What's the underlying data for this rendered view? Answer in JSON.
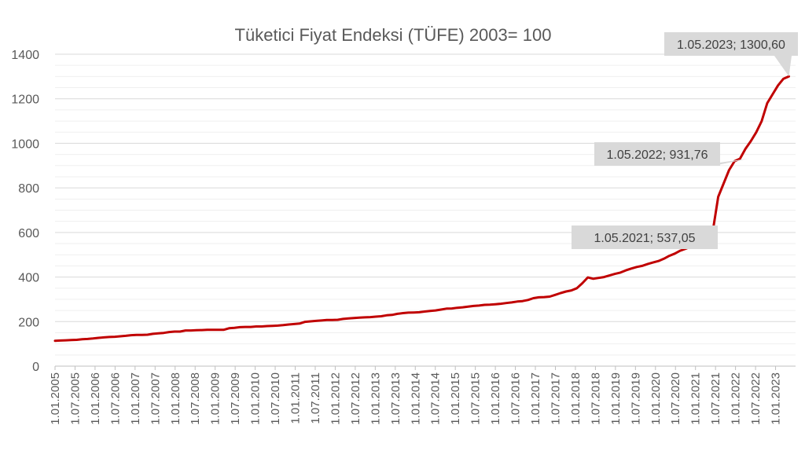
{
  "chart_data": {
    "type": "line",
    "title": "Tüketici Fiyat Endeksi (TÜFE) 2003= 100",
    "xlabel": "",
    "ylabel": "",
    "ylim": [
      0,
      1400
    ],
    "yticks": [
      "0",
      "200",
      "400",
      "600",
      "800",
      "1000",
      "1200",
      "1400"
    ],
    "xticks": [
      "1.01.2005",
      "1.07.2005",
      "1.01.2006",
      "1.07.2006",
      "1.01.2007",
      "1.07.2007",
      "1.01.2008",
      "1.07.2008",
      "1.01.2009",
      "1.07.2009",
      "1.01.2010",
      "1.07.2010",
      "1.01.2011",
      "1.07.2011",
      "1.01.2012",
      "1.07.2012",
      "1.01.2013",
      "1.07.2013",
      "1.01.2014",
      "1.07.2014",
      "1.01.2015",
      "1.07.2015",
      "1.01.2016",
      "1.07.2016",
      "1.01.2017",
      "1.07.2017",
      "1.01.2018",
      "1.07.2018",
      "1.01.2019",
      "1.07.2019",
      "1.01.2020",
      "1.07.2020",
      "1.01.2021",
      "1.07.2021",
      "1.01.2022",
      "1.07.2022",
      "1.01.2023"
    ],
    "grid": true,
    "line_color": "#C00000",
    "series": [
      {
        "values": [
          114,
          115,
          116,
          117,
          118,
          121,
          122,
          124,
          127,
          129,
          131,
          132,
          134,
          136,
          139,
          140,
          140,
          141,
          145,
          147,
          149,
          153,
          155,
          155,
          160,
          160,
          161,
          162,
          163,
          163,
          163,
          163,
          170,
          172,
          175,
          176,
          176,
          178,
          178,
          180,
          181,
          182,
          184,
          187,
          189,
          191,
          199,
          201,
          203,
          205,
          207,
          207,
          208,
          212,
          214,
          216,
          218,
          219,
          220,
          222,
          224,
          228,
          230,
          235,
          238,
          240,
          241,
          242,
          245,
          248,
          250,
          254,
          258,
          259,
          262,
          264,
          267,
          270,
          272,
          275,
          276,
          278,
          280,
          283,
          286,
          290,
          292,
          297,
          305,
          309,
          310,
          312,
          320,
          328,
          335,
          340,
          350,
          372,
          398,
          392,
          396,
          400,
          407,
          414,
          420,
          430,
          438,
          445,
          450,
          458,
          465,
          472,
          482,
          495,
          505,
          518,
          527,
          537,
          550,
          565,
          580,
          605,
          760,
          820,
          880,
          920,
          931,
          975,
          1010,
          1050,
          1100,
          1180,
          1220,
          1260,
          1290,
          1300.6
        ]
      }
    ],
    "annotations": [
      {
        "label": "1.05.2021; 537,05",
        "x": "1.05.2021",
        "y": 537.05
      },
      {
        "label": "1.05.2022; 931,76",
        "x": "1.05.2022",
        "y": 931.76
      },
      {
        "label": "1.05.2023; 1300,60",
        "x": "1.05.2023",
        "y": 1300.6
      }
    ]
  }
}
